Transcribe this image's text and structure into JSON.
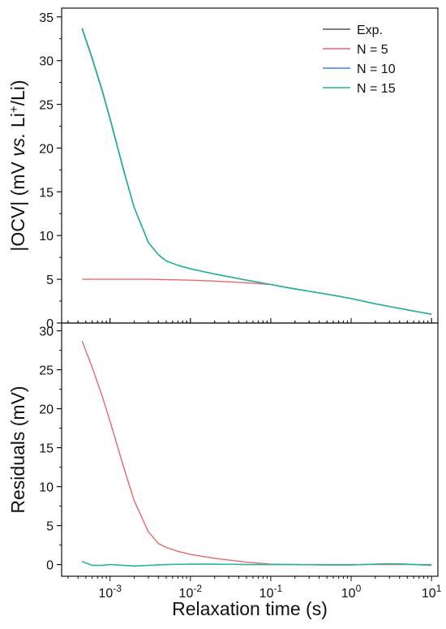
{
  "chart_data": [
    {
      "type": "line",
      "x_scale": "log",
      "xlim": [
        0.00025,
        12
      ],
      "ylim": [
        0,
        36
      ],
      "yticks": [
        0,
        5,
        10,
        15,
        20,
        25,
        30,
        35
      ],
      "ylabel": {
        "pre": "|OCV| (mV ",
        "vs": "vs.",
        "mid": " Li",
        "sup": "+",
        "post": "/Li)"
      },
      "legend": {
        "placement": "top-right",
        "entries": [
          "Exp.",
          "N = 5",
          "N = 10",
          "N = 15"
        ]
      },
      "series": [
        {
          "name": "Exp.",
          "color": "#555555",
          "x": [
            0.00045,
            0.0006,
            0.0008,
            0.001,
            0.0015,
            0.002,
            0.003,
            0.004,
            0.005,
            0.007,
            0.01,
            0.02,
            0.05,
            0.1,
            0.2,
            0.5,
            1,
            2,
            5,
            10
          ],
          "y": [
            33.7,
            30.3,
            26.6,
            23.4,
            17.3,
            13.2,
            9.2,
            7.8,
            7.1,
            6.6,
            6.2,
            5.6,
            4.9,
            4.4,
            3.9,
            3.3,
            2.8,
            2.2,
            1.5,
            1.0
          ]
        },
        {
          "name": "N = 5",
          "color": "#e8686a",
          "x": [
            0.00045,
            0.001,
            0.003,
            0.01,
            0.02,
            0.05,
            0.1,
            0.2,
            0.5,
            1,
            2,
            5,
            10
          ],
          "y": [
            5.0,
            5.0,
            5.0,
            4.9,
            4.8,
            4.6,
            4.4,
            3.9,
            3.3,
            2.8,
            2.2,
            1.5,
            1.0
          ]
        },
        {
          "name": "N = 10",
          "color": "#3a86d8",
          "x": [
            0.00045,
            0.0006,
            0.0008,
            0.001,
            0.0015,
            0.002,
            0.003,
            0.004,
            0.005,
            0.007,
            0.01,
            0.02,
            0.05,
            0.1,
            0.2,
            0.5,
            1,
            2,
            5,
            10
          ],
          "y": [
            33.6,
            30.2,
            26.5,
            23.3,
            17.2,
            13.2,
            9.2,
            7.8,
            7.1,
            6.6,
            6.2,
            5.6,
            4.9,
            4.4,
            3.9,
            3.3,
            2.8,
            2.2,
            1.5,
            1.0
          ]
        },
        {
          "name": "N = 15",
          "color": "#1fb89a",
          "x": [
            0.00045,
            0.0006,
            0.0008,
            0.001,
            0.0015,
            0.002,
            0.003,
            0.004,
            0.005,
            0.007,
            0.01,
            0.02,
            0.05,
            0.1,
            0.2,
            0.5,
            1,
            2,
            5,
            10
          ],
          "y": [
            33.6,
            30.2,
            26.5,
            23.3,
            17.2,
            13.2,
            9.2,
            7.8,
            7.1,
            6.6,
            6.2,
            5.6,
            4.9,
            4.4,
            3.9,
            3.3,
            2.8,
            2.2,
            1.5,
            1.0
          ]
        }
      ]
    },
    {
      "type": "line",
      "x_scale": "log",
      "xlim": [
        0.00025,
        12
      ],
      "ylim": [
        -1.5,
        31
      ],
      "yticks": [
        0,
        5,
        10,
        15,
        20,
        25,
        30
      ],
      "xticks": [
        0.001,
        0.01,
        0.1,
        1,
        10
      ],
      "xtick_labels": [
        [
          "10",
          "-3"
        ],
        [
          "10",
          "-2"
        ],
        [
          "10",
          "-1"
        ],
        [
          "10",
          "0"
        ],
        [
          "10",
          "1"
        ]
      ],
      "ylabel": "Residuals (mV)",
      "xlabel": "Relaxation time (s)",
      "series": [
        {
          "name": "N = 5",
          "color": "#e8686a",
          "x": [
            0.00045,
            0.0006,
            0.0008,
            0.001,
            0.0015,
            0.002,
            0.003,
            0.004,
            0.005,
            0.007,
            0.01,
            0.02,
            0.05,
            0.1,
            0.2,
            0.5,
            1,
            2,
            5,
            10
          ],
          "y": [
            28.7,
            25.3,
            21.6,
            18.4,
            12.3,
            8.2,
            4.2,
            2.7,
            2.2,
            1.7,
            1.3,
            0.8,
            0.3,
            0.05,
            0.0,
            0.0,
            0.0,
            0.0,
            0.0,
            0.0
          ]
        },
        {
          "name": "N = 10",
          "color": "#3a86d8",
          "x": [
            0.00045,
            0.0006,
            0.0008,
            0.001,
            0.0015,
            0.002,
            0.003,
            0.005,
            0.01,
            0.02,
            0.05,
            0.1,
            0.2,
            0.5,
            1,
            2,
            3,
            5,
            10
          ],
          "y": [
            0.4,
            -0.1,
            -0.1,
            0.0,
            -0.1,
            -0.2,
            -0.1,
            0.0,
            0.05,
            0.05,
            0.0,
            0.0,
            0.0,
            -0.05,
            -0.05,
            0.05,
            0.1,
            0.05,
            -0.1
          ]
        },
        {
          "name": "N = 15",
          "color": "#1fb89a",
          "x": [
            0.00045,
            0.0006,
            0.0008,
            0.001,
            0.0015,
            0.002,
            0.003,
            0.005,
            0.01,
            0.02,
            0.05,
            0.1,
            0.2,
            0.5,
            1,
            2,
            3,
            5,
            10
          ],
          "y": [
            0.4,
            -0.1,
            -0.1,
            0.0,
            -0.1,
            -0.2,
            -0.1,
            0.0,
            0.05,
            0.05,
            0.0,
            0.0,
            0.0,
            -0.05,
            -0.05,
            0.05,
            0.1,
            0.05,
            -0.1
          ]
        }
      ]
    }
  ]
}
